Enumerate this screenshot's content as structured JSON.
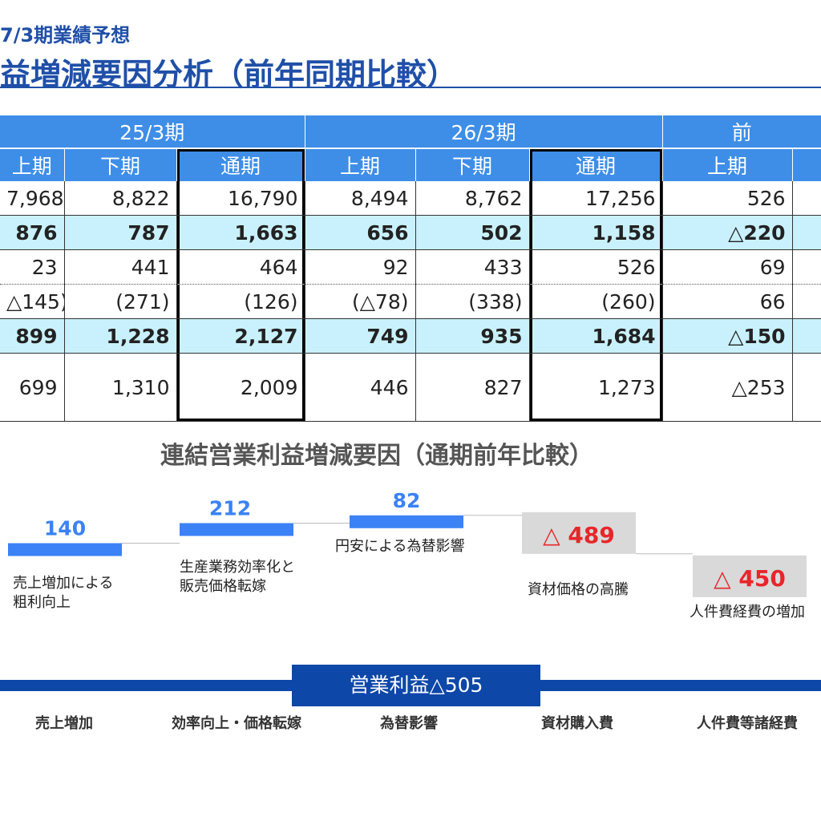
{
  "header": {
    "subtitle": "7/3期業績予想",
    "title": "益増減要因分析（前年同期比較）"
  },
  "table": {
    "periods": [
      "25/3期",
      "26/3期",
      "前"
    ],
    "halves": [
      "上期",
      "下期",
      "通期",
      "上期",
      "下期",
      "通期",
      "上期",
      ""
    ],
    "rows": [
      {
        "cells": [
          "7,968",
          "8,822",
          "16,790",
          "8,494",
          "8,762",
          "17,256",
          "526",
          ""
        ]
      },
      {
        "cells": [
          "876",
          "787",
          "1,663",
          "656",
          "502",
          "1,158",
          "△220",
          ""
        ]
      },
      {
        "cells": [
          "23",
          "441",
          "464",
          "92",
          "433",
          "526",
          "69",
          ""
        ]
      },
      {
        "cells": [
          "△145)",
          "(271)",
          "(126)",
          "(△78)",
          "(338)",
          "(260)",
          "66",
          ""
        ]
      },
      {
        "cells": [
          "899",
          "1,228",
          "2,127",
          "749",
          "935",
          "1,684",
          "△150",
          ""
        ]
      },
      {
        "cells": [
          "699",
          "1,310",
          "2,009",
          "446",
          "827",
          "1,273",
          "△253",
          ""
        ]
      }
    ]
  },
  "chart_data": {
    "type": "bar",
    "title": "連結営業利益増減要因（通期前年比較）",
    "categories": [
      "売上増加",
      "効率向上・価格転嫁",
      "為替影響",
      "資材購入費",
      "人件費等諸経費"
    ],
    "series": [
      {
        "values": [
          140,
          212,
          82,
          -489,
          -450
        ],
        "value_labels": [
          "140",
          "212",
          "82",
          "△ 489",
          "△ 450"
        ],
        "bar_labels": [
          [
            "売上増加による",
            "粗利向上"
          ],
          [
            "生産業務効率化と",
            "販売価格転嫁"
          ],
          [
            "円安による為替影響"
          ],
          [
            "資材価格の高騰"
          ],
          [
            "人件費経費の増加"
          ]
        ]
      }
    ],
    "result_label": "営業利益△505",
    "colors": {
      "increase": "#3b82f6",
      "decrease_box": "#d9d9d9",
      "decrease_text": "#e8262a",
      "total": "#0d47a8"
    }
  }
}
